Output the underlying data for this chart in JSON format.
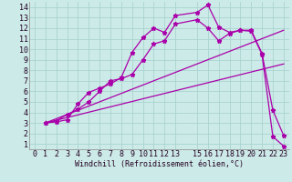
{
  "xlabel": "Windchill (Refroidissement éolien,°C)",
  "bg_color": "#cceae7",
  "grid_color": "#aad4d0",
  "line_color": "#aa00aa",
  "xlim": [
    -0.5,
    23.5
  ],
  "ylim": [
    0.5,
    14.5
  ],
  "xticks": [
    0,
    1,
    2,
    3,
    4,
    5,
    6,
    7,
    8,
    9,
    10,
    11,
    12,
    13,
    15,
    16,
    17,
    18,
    19,
    20,
    21,
    22,
    23
  ],
  "yticks": [
    1,
    2,
    3,
    4,
    5,
    6,
    7,
    8,
    9,
    10,
    11,
    12,
    13,
    14
  ],
  "line1_x": [
    1,
    2,
    3,
    4,
    5,
    6,
    7,
    8,
    9,
    10,
    11,
    12,
    13,
    15,
    16,
    17,
    18,
    19,
    20,
    21,
    22,
    23
  ],
  "line1_y": [
    3.0,
    3.1,
    3.3,
    4.8,
    5.9,
    6.3,
    6.7,
    7.3,
    9.7,
    11.1,
    12.0,
    11.6,
    13.2,
    13.5,
    14.2,
    12.1,
    11.6,
    11.8,
    11.8,
    9.6,
    4.2,
    1.8
  ],
  "line2_x": [
    1,
    2,
    3,
    4,
    5,
    6,
    7,
    8,
    9,
    10,
    11,
    12,
    13,
    15,
    16,
    17,
    18,
    19,
    20,
    21,
    22,
    23
  ],
  "line2_y": [
    3.0,
    3.2,
    3.8,
    4.3,
    5.0,
    6.0,
    7.0,
    7.2,
    7.6,
    9.0,
    10.5,
    10.8,
    12.4,
    12.8,
    12.0,
    10.8,
    11.5,
    11.8,
    11.7,
    9.5,
    1.7,
    0.8
  ],
  "line3_x": [
    1,
    23
  ],
  "line3_y": [
    3.0,
    11.8
  ],
  "line4_x": [
    1,
    23
  ],
  "line4_y": [
    3.0,
    8.6
  ],
  "tick_fontsize": 6,
  "label_fontsize": 6
}
